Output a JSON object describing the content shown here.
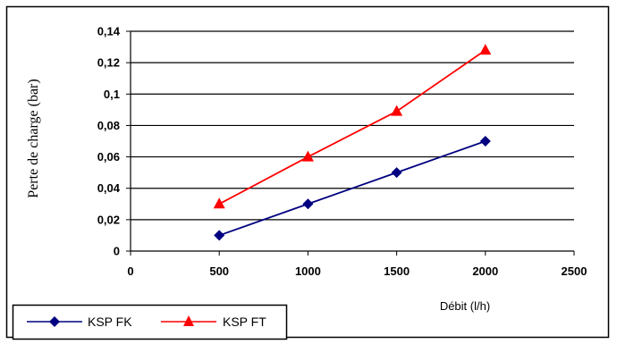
{
  "chart_data": {
    "type": "line",
    "xlabel": "Débit (l/h)",
    "ylabel": "Perte de charge (bar)",
    "xlim": [
      0,
      2500
    ],
    "ylim": [
      0,
      0.14
    ],
    "x_ticks": [
      0,
      500,
      1000,
      1500,
      2000,
      2500
    ],
    "x_tick_labels": [
      "0",
      "500",
      "1000",
      "1500",
      "2000",
      "2500"
    ],
    "y_ticks": [
      0,
      0.02,
      0.04,
      0.06,
      0.08,
      0.1,
      0.12,
      0.14
    ],
    "y_tick_labels": [
      "0",
      "0,02",
      "0,04",
      "0,06",
      "0,08",
      "0,1",
      "0,12",
      "0,14"
    ],
    "grid": "horizontal",
    "legend_position": "bottom-left",
    "series": [
      {
        "name": "KSP FK",
        "color": "#000080",
        "marker": "diamond",
        "x": [
          500,
          1000,
          1500,
          2000
        ],
        "values": [
          0.01,
          0.03,
          0.05,
          0.07
        ]
      },
      {
        "name": "KSP FT",
        "color": "#ff0000",
        "marker": "triangle",
        "x": [
          500,
          1000,
          1500,
          2000
        ],
        "values": [
          0.03,
          0.06,
          0.089,
          0.128
        ]
      }
    ]
  }
}
